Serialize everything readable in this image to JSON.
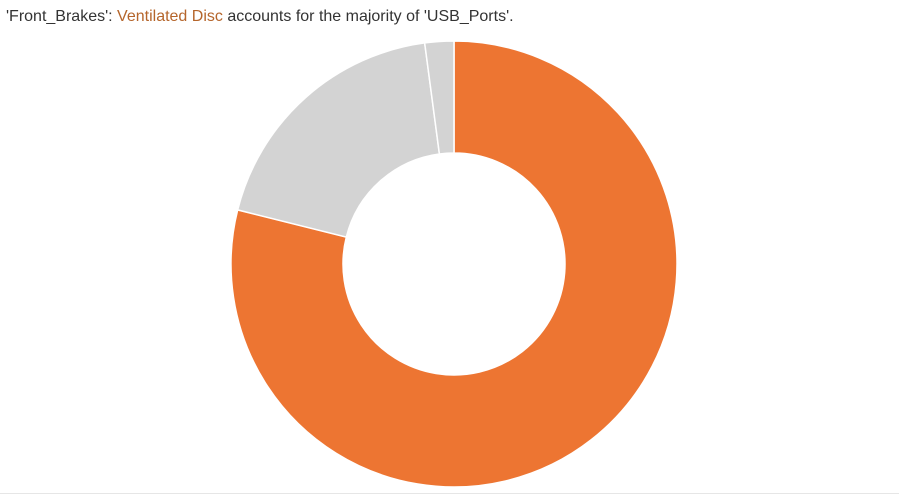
{
  "title": {
    "prefix": "'Front_Brakes': ",
    "highlight": "Ventilated Disc",
    "suffix": " accounts for the majority of 'USB_Ports'."
  },
  "colors": {
    "highlight_text": "#b5652b",
    "primary_slice": "#ed7532",
    "other_slices": "#d3d3d3",
    "slice_border": "#ffffff"
  },
  "chart_data": {
    "type": "pie",
    "variant": "donut",
    "title": "'Front_Brakes': Ventilated Disc accounts for the majority of 'USB_Ports'.",
    "categories": [
      "Ventilated Disc",
      "",
      ""
    ],
    "values": [
      78.9,
      19.0,
      2.1
    ],
    "start": "12 o'clock",
    "direction": "clockwise",
    "legend": "none",
    "data_labels": "none"
  }
}
